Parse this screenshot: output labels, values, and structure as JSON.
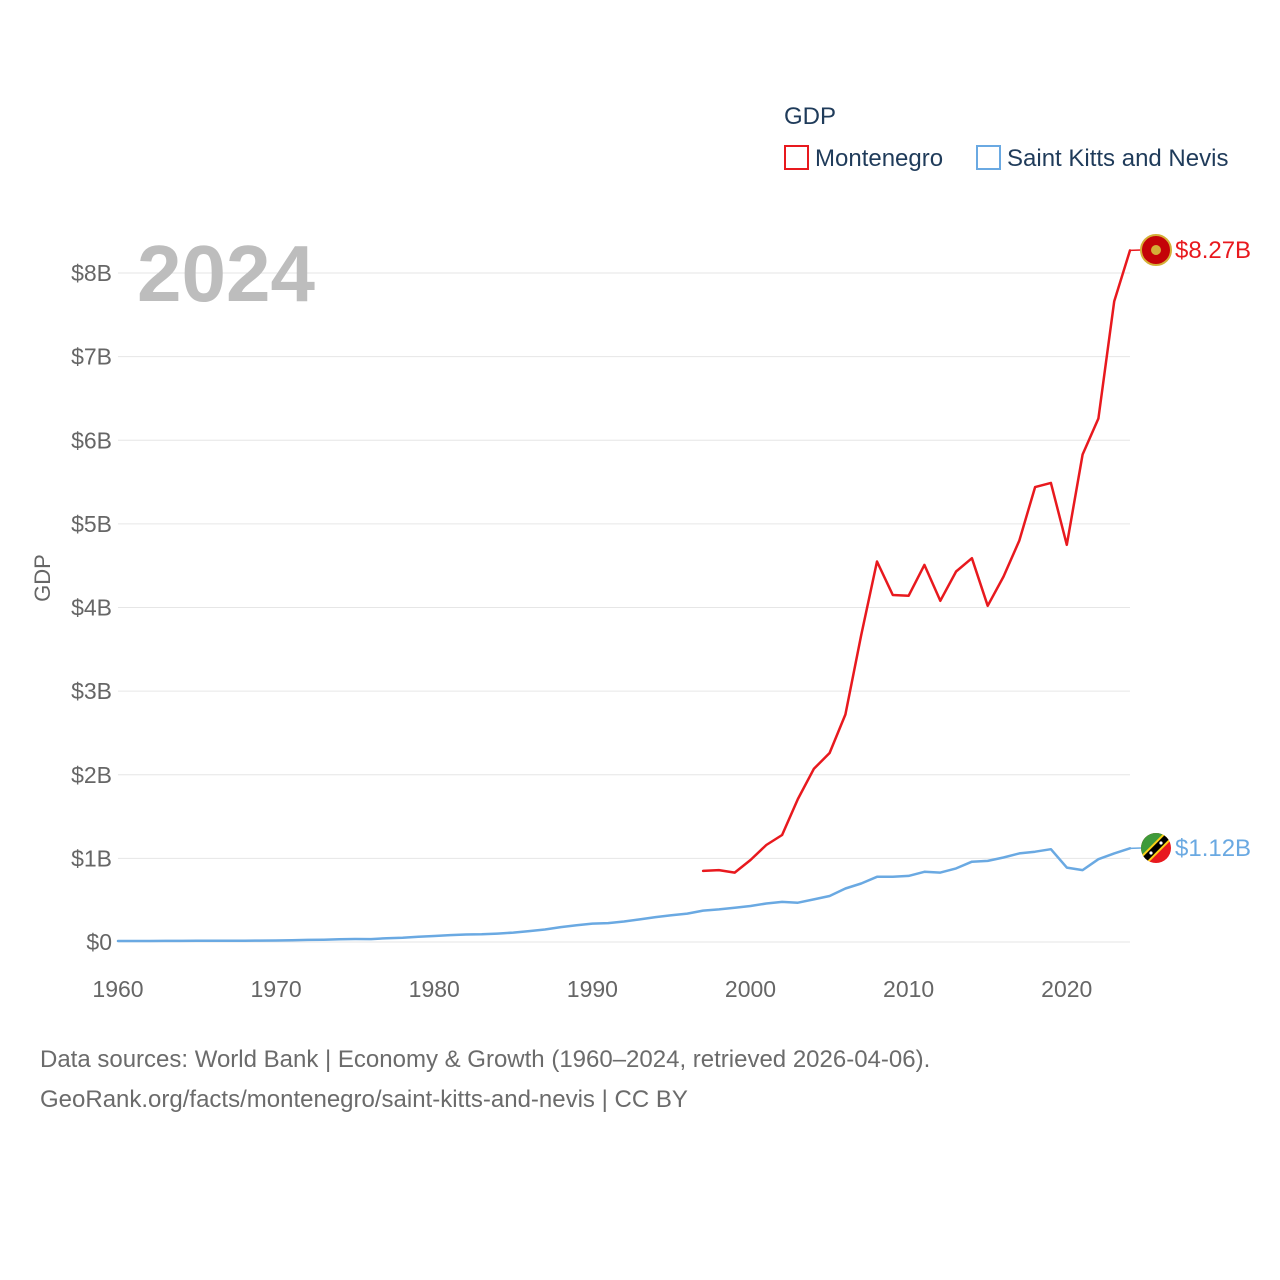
{
  "legend": {
    "title": "GDP",
    "entries": [
      {
        "name": "Montenegro",
        "color": "#e8191e"
      },
      {
        "name": "Saint Kitts and Nevis",
        "color": "#6aa9e2"
      }
    ]
  },
  "year_label": "2024",
  "footer": {
    "line1": "Data sources: World Bank | Economy & Growth (1960–2024, retrieved 2026-04-06).",
    "line2": "GeoRank.org/facts/montenegro/saint-kitts-and-nevis | CC BY"
  },
  "chart_data": {
    "type": "line",
    "title": "",
    "xlabel": "",
    "ylabel": "GDP",
    "xlim": [
      1960,
      2024
    ],
    "ylim": [
      0,
      8
    ],
    "x_ticks": [
      1960,
      1970,
      1980,
      1990,
      2000,
      2010,
      2020
    ],
    "x_tick_labels": [
      "1960",
      "1970",
      "1980",
      "1990",
      "2000",
      "2010",
      "2020"
    ],
    "y_ticks": [
      0,
      1,
      2,
      3,
      4,
      5,
      6,
      7,
      8
    ],
    "y_tick_labels": [
      "$0",
      "$1B",
      "$2B",
      "$3B",
      "$4B",
      "$5B",
      "$6B",
      "$7B",
      "$8B"
    ],
    "grid": true,
    "series": [
      {
        "name": "Montenegro",
        "color": "#e8191e",
        "end_label": "$8.27B",
        "x": [
          1997,
          1998,
          1999,
          2000,
          2001,
          2002,
          2003,
          2004,
          2005,
          2006,
          2007,
          2008,
          2009,
          2010,
          2011,
          2012,
          2013,
          2014,
          2015,
          2016,
          2017,
          2018,
          2019,
          2020,
          2021,
          2022,
          2023,
          2024
        ],
        "values": [
          0.85,
          0.86,
          0.83,
          0.98,
          1.16,
          1.28,
          1.71,
          2.07,
          2.26,
          2.72,
          3.67,
          4.55,
          4.15,
          4.14,
          4.51,
          4.08,
          4.43,
          4.59,
          4.02,
          4.37,
          4.8,
          5.44,
          5.49,
          4.75,
          5.83,
          6.26,
          7.66,
          8.27
        ]
      },
      {
        "name": "Saint Kitts and Nevis",
        "color": "#6aa9e2",
        "end_label": "$1.12B",
        "x": [
          1960,
          1961,
          1962,
          1963,
          1964,
          1965,
          1966,
          1967,
          1968,
          1969,
          1970,
          1971,
          1972,
          1973,
          1974,
          1975,
          1976,
          1977,
          1978,
          1979,
          1980,
          1981,
          1982,
          1983,
          1984,
          1985,
          1986,
          1987,
          1988,
          1989,
          1990,
          1991,
          1992,
          1993,
          1994,
          1995,
          1996,
          1997,
          1998,
          1999,
          2000,
          2001,
          2002,
          2003,
          2004,
          2005,
          2006,
          2007,
          2008,
          2009,
          2010,
          2011,
          2012,
          2013,
          2014,
          2015,
          2016,
          2017,
          2018,
          2019,
          2020,
          2021,
          2022,
          2023,
          2024
        ],
        "values": [
          0.012,
          0.012,
          0.012,
          0.013,
          0.013,
          0.014,
          0.015,
          0.016,
          0.016,
          0.017,
          0.018,
          0.021,
          0.025,
          0.028,
          0.034,
          0.036,
          0.035,
          0.046,
          0.052,
          0.062,
          0.072,
          0.082,
          0.09,
          0.092,
          0.1,
          0.112,
          0.13,
          0.15,
          0.178,
          0.2,
          0.22,
          0.226,
          0.245,
          0.27,
          0.298,
          0.32,
          0.34,
          0.375,
          0.39,
          0.41,
          0.43,
          0.46,
          0.48,
          0.47,
          0.51,
          0.55,
          0.64,
          0.7,
          0.78,
          0.78,
          0.79,
          0.84,
          0.83,
          0.88,
          0.96,
          0.97,
          1.01,
          1.06,
          1.08,
          1.11,
          0.89,
          0.86,
          0.99,
          1.06,
          1.12
        ]
      }
    ]
  }
}
